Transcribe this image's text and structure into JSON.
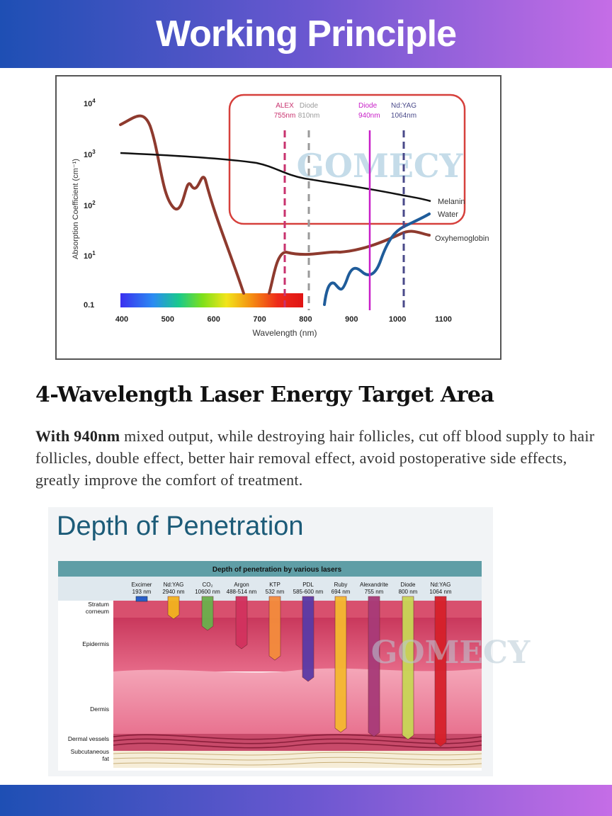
{
  "header": {
    "title": "Working Principle"
  },
  "absorption_chart": {
    "y_axis_title": "Absorption Coefficient (cm⁻¹)",
    "x_axis_title": "Wavelength (nm)",
    "y_ticks": [
      {
        "base": "10",
        "exp": "4"
      },
      {
        "base": "10",
        "exp": "3"
      },
      {
        "base": "10",
        "exp": "2"
      },
      {
        "base": "10",
        "exp": "1"
      },
      {
        "base": "0.1",
        "exp": ""
      }
    ],
    "x_ticks": [
      "400",
      "500",
      "600",
      "700",
      "800",
      "900",
      "1000",
      "1100"
    ],
    "lasers": [
      {
        "name": "ALEX",
        "wl": "755nm",
        "color": "#c8326e"
      },
      {
        "name": "Diode",
        "wl": "810nm",
        "color": "#9a9a9a"
      },
      {
        "name": "Diode",
        "wl": "940nm",
        "color": "#c81ec8"
      },
      {
        "name": "Nd:YAG",
        "wl": "1064nm",
        "color": "#4a4a8a"
      }
    ],
    "curve_labels": {
      "melanin": "Melanin",
      "water": "Water",
      "oxy": "Oxyhemoglobin"
    },
    "watermark": "GOMECY"
  },
  "section": {
    "heading": "4-Wavelength Laser Energy Target Area",
    "desc_bold": "With 940nm",
    "desc_rest": " mixed output, while destroying hair follicles, cut off blood supply to hair follicles, double effect, better hair removal effect, avoid postoperative side effects, greatly improve the comfort of treatment."
  },
  "depth": {
    "title": "Depth of Penetration",
    "subtitle": "Depth of penetration by various lasers",
    "layers": {
      "stratum": "Stratum corneum",
      "epidermis": "Epidermis",
      "dermis": "Dermis",
      "vessels": "Dermal vessels",
      "fat": "Subcutaneous fat"
    },
    "lasers": [
      {
        "name": "Excimer",
        "wl": "193 nm",
        "depth": 0.0,
        "color": "#2a5fc8"
      },
      {
        "name": "Nd:YAG",
        "wl": "2940 nm",
        "depth": 0.08,
        "color": "#f2b21e"
      },
      {
        "name": "CO₂",
        "wl": "10600 nm",
        "depth": 0.16,
        "color": "#6ab04c"
      },
      {
        "name": "Argon",
        "wl": "488-514 nm",
        "depth": 0.29,
        "color": "#d2325e"
      },
      {
        "name": "KTP",
        "wl": "532 nm",
        "depth": 0.37,
        "color": "#f48c3c"
      },
      {
        "name": "PDL",
        "wl": "585-600 nm",
        "depth": 0.52,
        "color": "#5a3aa6"
      },
      {
        "name": "Ruby",
        "wl": "694 nm",
        "depth": 0.88,
        "color": "#f5b830"
      },
      {
        "name": "Alexandrite",
        "wl": "755 nm",
        "depth": 0.91,
        "color": "#a83a78"
      },
      {
        "name": "Diode",
        "wl": "800 nm",
        "depth": 0.93,
        "color": "#c8d656"
      },
      {
        "name": "Nd:YAG",
        "wl": "1064 nm",
        "depth": 0.98,
        "color": "#d6202a"
      }
    ],
    "watermark": "GOMECY"
  },
  "colors": {
    "banner_start": "#1e4fb4",
    "banner_end": "#c56de6",
    "depth_title": "#1c5b78"
  }
}
